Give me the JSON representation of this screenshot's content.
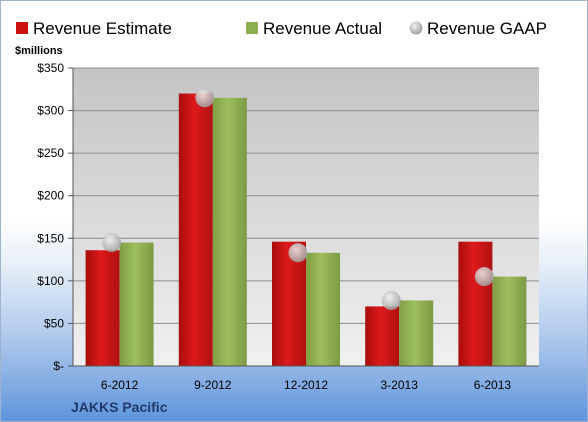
{
  "chart_data": {
    "type": "bar",
    "company": "JAKKS Pacific",
    "unit_label": "$millions",
    "categories": [
      "6-2012",
      "9-2012",
      "12-2012",
      "3-2013",
      "6-2013"
    ],
    "series": [
      {
        "name": "Revenue Estimate",
        "kind": "bar",
        "color": "#cc1111",
        "values": [
          136,
          320,
          146,
          70,
          146
        ]
      },
      {
        "name": "Revenue Actual",
        "kind": "bar",
        "color": "#8caf4f",
        "values": [
          145,
          315,
          133,
          77,
          105
        ]
      },
      {
        "name": "Revenue GAAP",
        "kind": "marker",
        "color": "#b0b0b0",
        "values": [
          145,
          315,
          133,
          77,
          105
        ]
      }
    ],
    "ylim": [
      0,
      350
    ],
    "yticks": [
      {
        "value": 0,
        "label": "$-"
      },
      {
        "value": 50,
        "label": "$50"
      },
      {
        "value": 100,
        "label": "$100"
      },
      {
        "value": 150,
        "label": "$150"
      },
      {
        "value": 200,
        "label": "$200"
      },
      {
        "value": 250,
        "label": "$250"
      },
      {
        "value": 300,
        "label": "$300"
      },
      {
        "value": 350,
        "label": "$350"
      }
    ],
    "grid": true,
    "legend": "top"
  }
}
